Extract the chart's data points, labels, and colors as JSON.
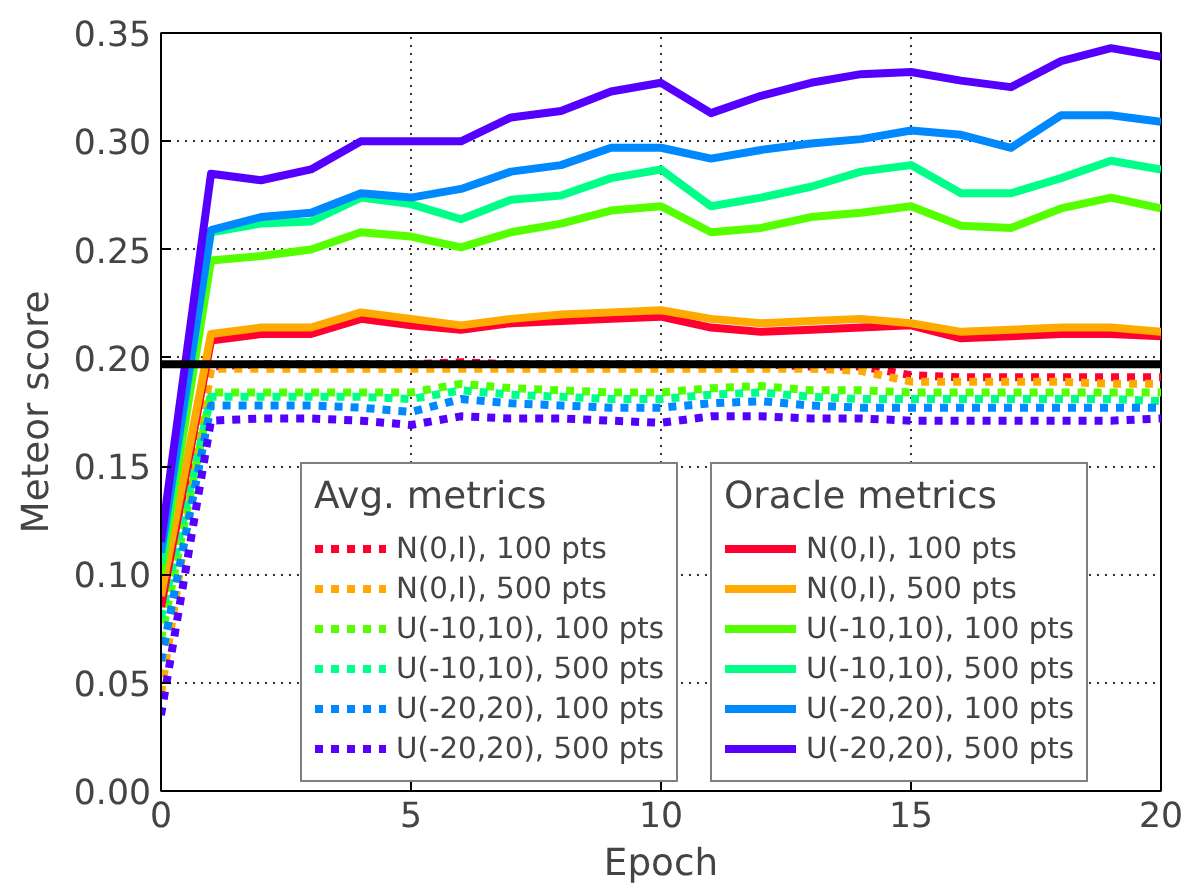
{
  "chart_data": {
    "type": "line",
    "xlabel": "Epoch",
    "ylabel": "Meteor score",
    "legend_title": [
      "Avg. metrics",
      "Oracle metrics"
    ],
    "x": [
      0,
      1,
      2,
      3,
      4,
      5,
      6,
      7,
      8,
      9,
      10,
      11,
      12,
      13,
      14,
      15,
      16,
      17,
      18,
      19,
      20
    ],
    "xlim": [
      0,
      20
    ],
    "xticks": [
      0,
      5,
      10,
      15,
      20
    ],
    "ylim": [
      0,
      0.35
    ],
    "yticks": [
      {
        "value": 0,
        "label": "0.00"
      },
      {
        "value": 0.05,
        "label": "0.05"
      },
      {
        "value": 0.1,
        "label": "0.10"
      },
      {
        "value": 0.15,
        "label": "0.15"
      },
      {
        "value": 0.2,
        "label": "0.20"
      },
      {
        "value": 0.25,
        "label": "0.25"
      },
      {
        "value": 0.3,
        "label": "0.30"
      },
      {
        "value": 0.35,
        "label": "0.35"
      }
    ],
    "grid": true,
    "legend": "bottom right",
    "ref_lines": [
      {
        "axis": "y",
        "value": 0.197,
        "color": "#000000"
      }
    ],
    "series": [
      {
        "name": "N(0,I), 100 pts",
        "color": "#ff0030",
        "line_style": "dashed",
        "values": [
          0.09,
          0.196,
          0.197,
          0.197,
          0.197,
          0.197,
          0.198,
          0.197,
          0.197,
          0.197,
          0.197,
          0.197,
          0.197,
          0.196,
          0.196,
          0.192,
          0.191,
          0.191,
          0.191,
          0.191,
          0.191
        ]
      },
      {
        "name": "N(0,I), 500 pts",
        "color": "#ffaa00",
        "line_style": "dashed",
        "values": [
          0.045,
          0.195,
          0.195,
          0.195,
          0.195,
          0.195,
          0.195,
          0.195,
          0.195,
          0.195,
          0.195,
          0.195,
          0.195,
          0.195,
          0.194,
          0.189,
          0.189,
          0.189,
          0.189,
          0.188,
          0.188
        ]
      },
      {
        "name": "U(-10,10), 100 pts",
        "color": "#55ff00",
        "line_style": "dashed",
        "values": [
          0.07,
          0.184,
          0.184,
          0.184,
          0.184,
          0.184,
          0.188,
          0.186,
          0.185,
          0.184,
          0.184,
          0.186,
          0.187,
          0.185,
          0.185,
          0.184,
          0.184,
          0.184,
          0.184,
          0.184,
          0.184
        ]
      },
      {
        "name": "U(-10,10), 500 pts",
        "color": "#00ff88",
        "line_style": "dashed",
        "values": [
          0.08,
          0.182,
          0.182,
          0.182,
          0.182,
          0.181,
          0.185,
          0.183,
          0.182,
          0.181,
          0.181,
          0.183,
          0.184,
          0.182,
          0.181,
          0.181,
          0.181,
          0.181,
          0.181,
          0.181,
          0.18
        ]
      },
      {
        "name": "U(-20,20), 100 pts",
        "color": "#0088ff",
        "line_style": "dashed",
        "values": [
          0.06,
          0.178,
          0.178,
          0.178,
          0.177,
          0.175,
          0.181,
          0.179,
          0.178,
          0.177,
          0.177,
          0.179,
          0.18,
          0.178,
          0.177,
          0.177,
          0.177,
          0.177,
          0.177,
          0.177,
          0.177
        ]
      },
      {
        "name": "U(-20,20), 500 pts",
        "color": "#5500ff",
        "line_style": "dashed",
        "values": [
          0.035,
          0.171,
          0.172,
          0.172,
          0.171,
          0.169,
          0.173,
          0.172,
          0.172,
          0.171,
          0.17,
          0.173,
          0.173,
          0.172,
          0.172,
          0.171,
          0.171,
          0.171,
          0.171,
          0.171,
          0.172
        ]
      },
      {
        "name": "N(0,I), 100 pts",
        "color": "#ff0030",
        "line_style": "solid",
        "values": [
          0.085,
          0.208,
          0.211,
          0.211,
          0.218,
          0.215,
          0.213,
          0.216,
          0.217,
          0.218,
          0.219,
          0.214,
          0.212,
          0.213,
          0.214,
          0.215,
          0.209,
          0.21,
          0.211,
          0.211,
          0.21
        ]
      },
      {
        "name": "N(0,I), 500 pts",
        "color": "#ffaa00",
        "line_style": "solid",
        "values": [
          0.09,
          0.211,
          0.214,
          0.214,
          0.221,
          0.218,
          0.215,
          0.218,
          0.22,
          0.221,
          0.222,
          0.218,
          0.216,
          0.217,
          0.218,
          0.216,
          0.212,
          0.213,
          0.214,
          0.214,
          0.212
        ]
      },
      {
        "name": "U(-10,10), 100 pts",
        "color": "#55ff00",
        "line_style": "solid",
        "values": [
          0.1,
          0.245,
          0.247,
          0.25,
          0.258,
          0.256,
          0.251,
          0.258,
          0.262,
          0.268,
          0.27,
          0.258,
          0.26,
          0.265,
          0.267,
          0.27,
          0.261,
          0.26,
          0.269,
          0.274,
          0.269
        ]
      },
      {
        "name": "U(-10,10), 500 pts",
        "color": "#00ff88",
        "line_style": "solid",
        "values": [
          0.105,
          0.258,
          0.262,
          0.263,
          0.274,
          0.271,
          0.264,
          0.273,
          0.275,
          0.283,
          0.287,
          0.27,
          0.274,
          0.279,
          0.286,
          0.289,
          0.276,
          0.276,
          0.283,
          0.291,
          0.287
        ]
      },
      {
        "name": "U(-20,20), 100 pts",
        "color": "#0088ff",
        "line_style": "solid",
        "values": [
          0.11,
          0.259,
          0.265,
          0.267,
          0.276,
          0.274,
          0.278,
          0.286,
          0.289,
          0.297,
          0.297,
          0.292,
          0.296,
          0.299,
          0.301,
          0.305,
          0.303,
          0.297,
          0.312,
          0.312,
          0.309
        ]
      },
      {
        "name": "U(-20,20), 500 pts",
        "color": "#5500ff",
        "line_style": "solid",
        "values": [
          0.115,
          0.285,
          0.282,
          0.287,
          0.3,
          0.3,
          0.3,
          0.311,
          0.314,
          0.323,
          0.327,
          0.313,
          0.321,
          0.327,
          0.331,
          0.332,
          0.328,
          0.325,
          0.337,
          0.343,
          0.339
        ]
      }
    ]
  }
}
